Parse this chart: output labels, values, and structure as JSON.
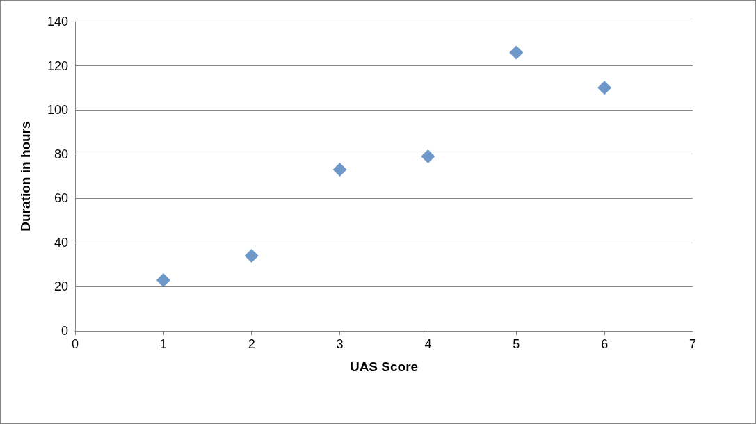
{
  "chart_data": {
    "type": "scatter",
    "xlabel": "UAS Score",
    "ylabel": "Duration in hours",
    "x": [
      1,
      2,
      3,
      4,
      5,
      6
    ],
    "series": [
      {
        "color": "#4a7ebb",
        "values": [
          23,
          34,
          73,
          79,
          126,
          110
        ]
      }
    ],
    "xlim": [
      0,
      7
    ],
    "xticks": [
      0,
      1,
      2,
      3,
      4,
      5,
      6,
      7
    ],
    "ylim": [
      0,
      140
    ],
    "yticks": [
      0,
      20,
      40,
      60,
      80,
      100,
      120,
      140
    ],
    "grid": "y",
    "marker": "diamond"
  }
}
